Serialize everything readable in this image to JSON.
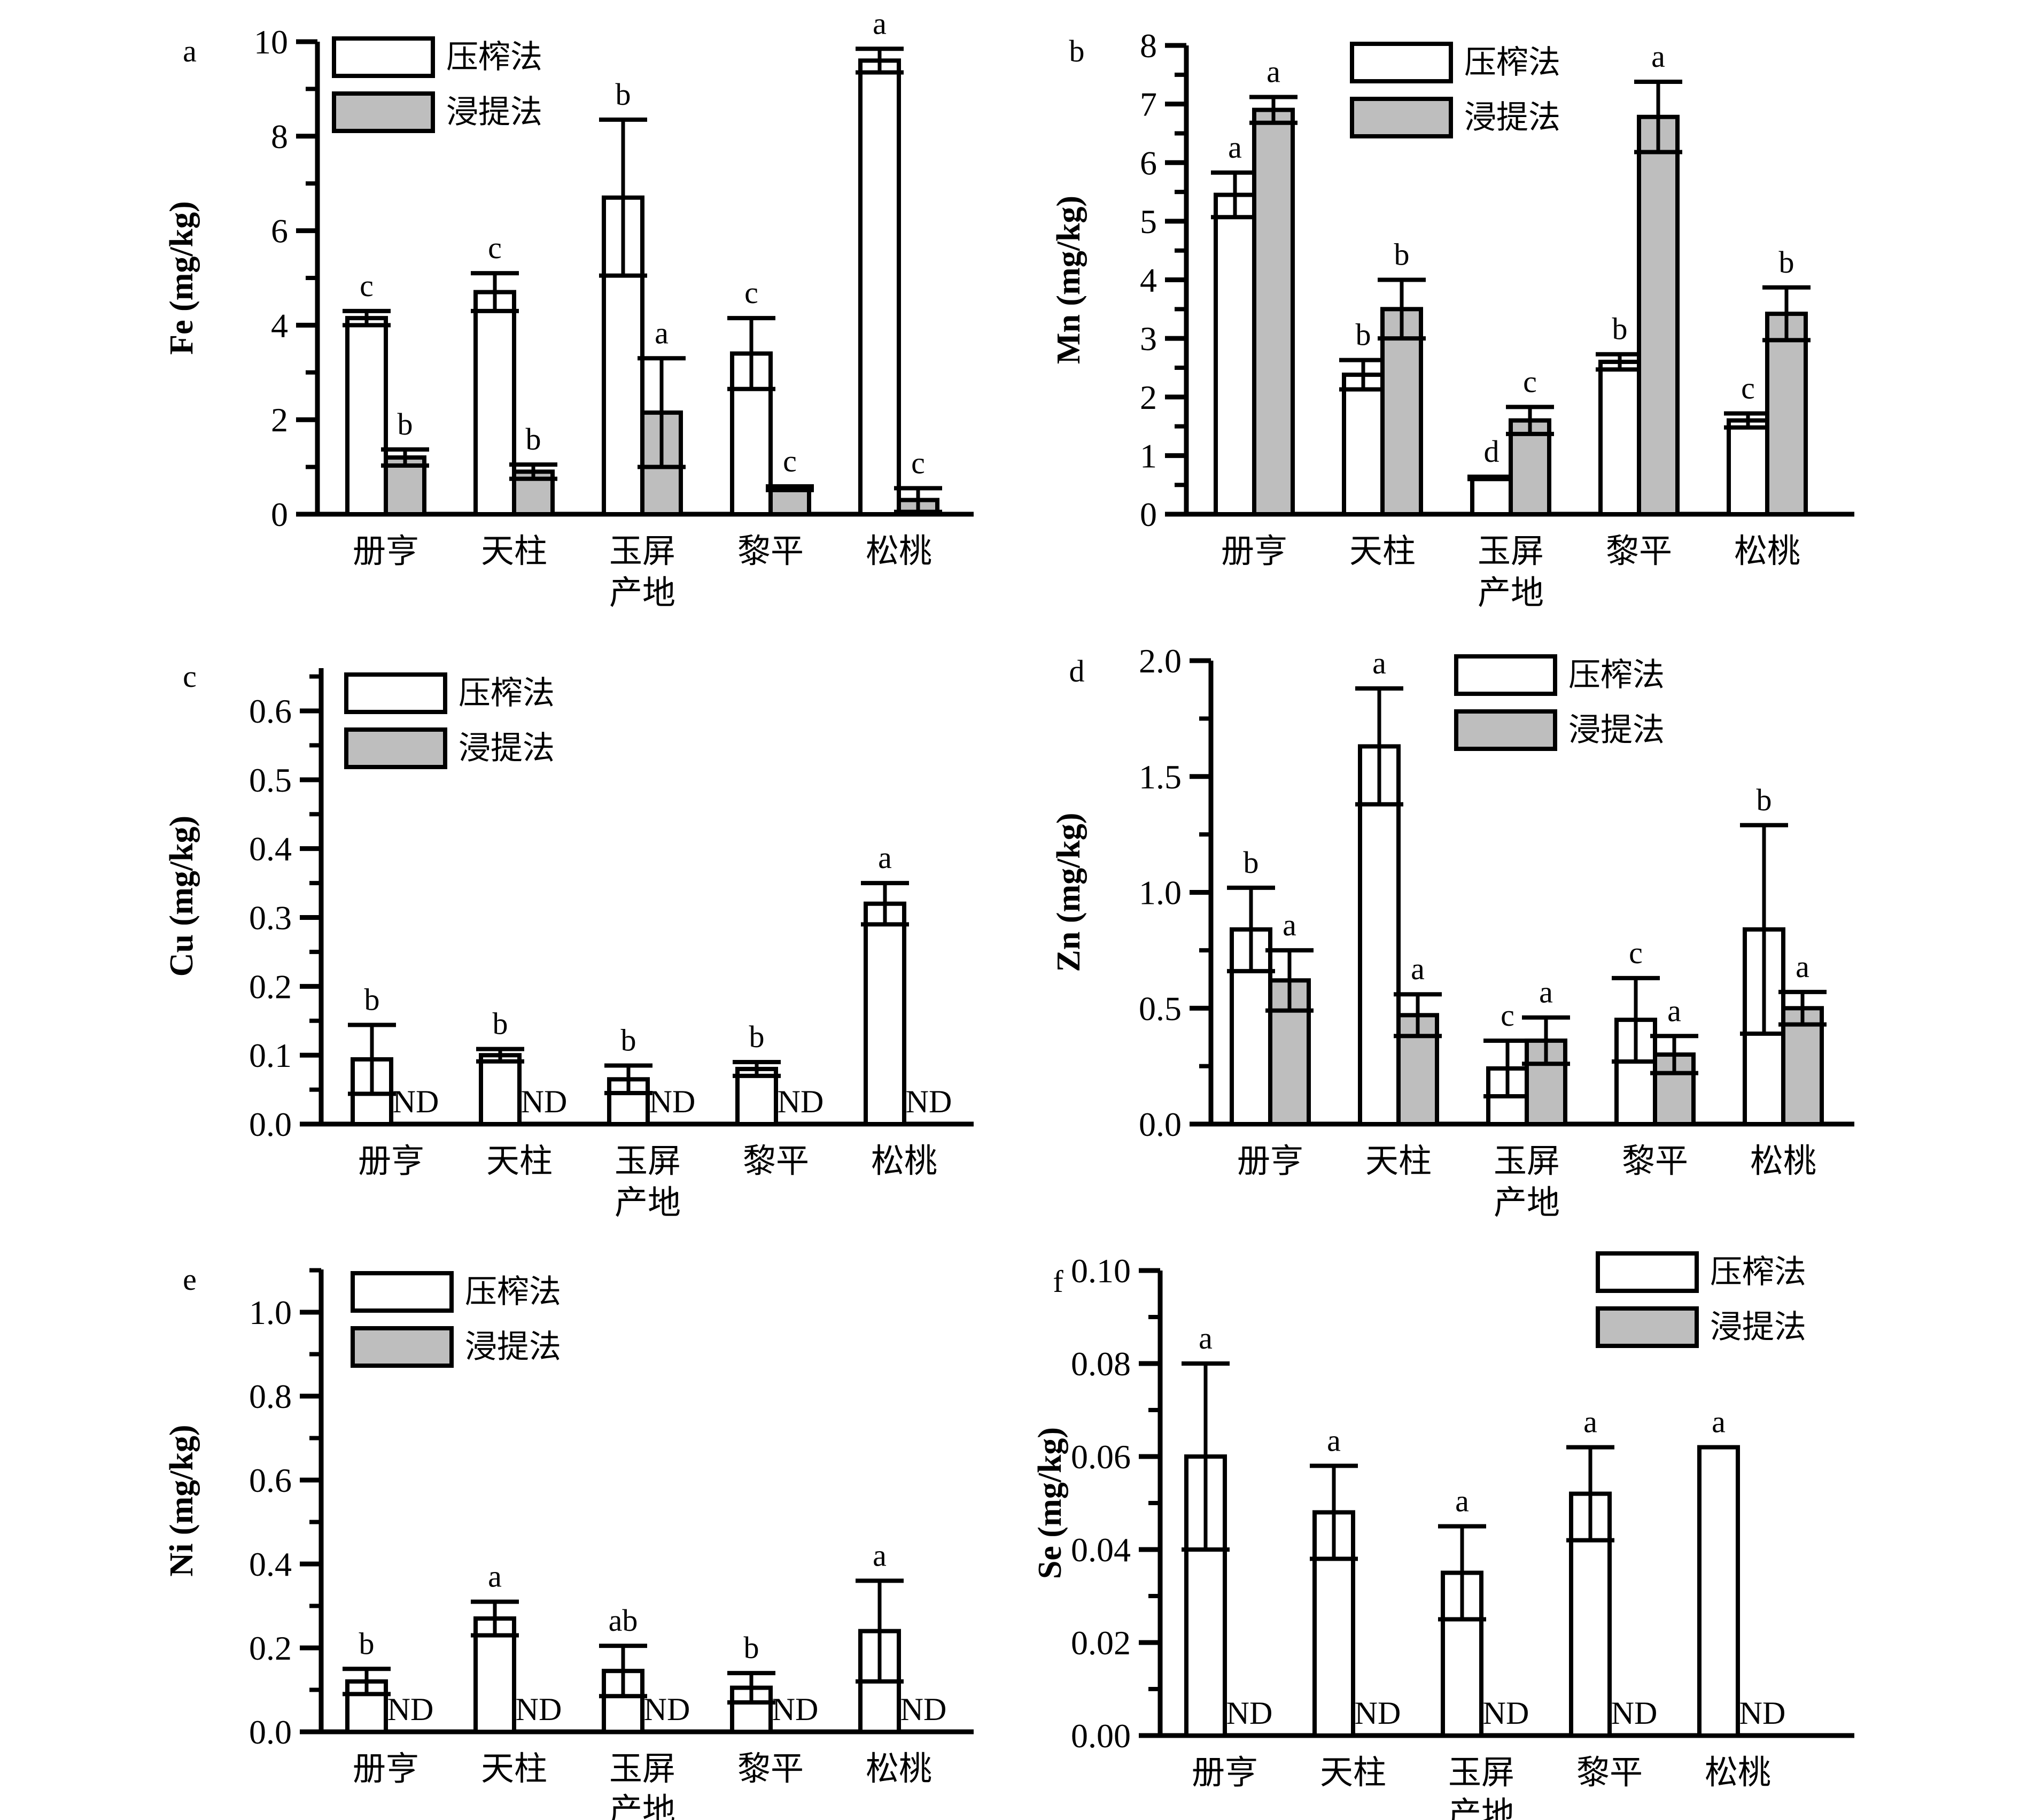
{
  "legend": {
    "pressed": "压榨法",
    "leached": "浸提法"
  },
  "colors": {
    "pressed_fill": "#ffffff",
    "leached_fill": "#bebebe",
    "stroke": "#000000"
  },
  "categories": [
    "册亨",
    "天柱",
    "玉屏\n产地",
    "黎平",
    "松桃"
  ],
  "nd_label": "ND",
  "chart_data": [
    {
      "type": "bar",
      "panel": "a",
      "ylabel": "Fe (mg/kg)",
      "ylim": [
        0,
        10
      ],
      "yticks": [
        0,
        2,
        4,
        6,
        8,
        10
      ],
      "ytick_labels": [
        "0",
        "2",
        "4",
        "6",
        "8",
        "10"
      ],
      "minor_step": 1,
      "legend_position": "top-left",
      "categories": [
        "册亨",
        "天柱",
        "玉屏产地",
        "黎平",
        "松桃"
      ],
      "series": [
        {
          "name": "压榨法",
          "values": [
            4.15,
            4.7,
            6.7,
            3.4,
            9.6
          ],
          "errors": [
            0.15,
            0.4,
            1.65,
            0.75,
            0.25
          ],
          "letters": [
            "c",
            "c",
            "b",
            "c",
            "a"
          ]
        },
        {
          "name": "浸提法",
          "values": [
            1.2,
            0.9,
            2.15,
            0.55,
            0.3
          ],
          "errors": [
            0.17,
            0.15,
            1.15,
            0.04,
            0.25
          ],
          "letters": [
            "b",
            "b",
            "a",
            "c",
            "c"
          ]
        }
      ]
    },
    {
      "type": "bar",
      "panel": "b",
      "ylabel": "Mn (mg/kg)",
      "ylim": [
        0,
        8
      ],
      "yticks": [
        0,
        1,
        2,
        3,
        4,
        5,
        6,
        7,
        8
      ],
      "ytick_labels": [
        "0",
        "1",
        "2",
        "3",
        "4",
        "5",
        "6",
        "7",
        "8"
      ],
      "minor_step": 0.5,
      "legend_position": "top-center",
      "categories": [
        "册亨",
        "天柱",
        "玉屏产地",
        "黎平",
        "松桃"
      ],
      "series": [
        {
          "name": "压榨法",
          "values": [
            5.45,
            2.38,
            0.62,
            2.6,
            1.6
          ],
          "errors": [
            0.38,
            0.25,
            0.02,
            0.13,
            0.12
          ],
          "letters": [
            "a",
            "b",
            "d",
            "b",
            "c"
          ]
        },
        {
          "name": "浸提法",
          "values": [
            6.9,
            3.5,
            1.6,
            6.78,
            3.42
          ],
          "errors": [
            0.22,
            0.5,
            0.23,
            0.6,
            0.45
          ],
          "letters": [
            "a",
            "b",
            "c",
            "a",
            "b"
          ]
        }
      ]
    },
    {
      "type": "bar",
      "panel": "c",
      "ylabel": "Cu (mg/kg)",
      "ylim": [
        0,
        0.65
      ],
      "yticks": [
        0,
        0.1,
        0.2,
        0.3,
        0.4,
        0.5,
        0.6
      ],
      "ytick_labels": [
        "0.0",
        "0.1",
        "0.2",
        "0.3",
        "0.4",
        "0.5",
        "0.6"
      ],
      "minor_step": 0.05,
      "legend_position": "top-left",
      "categories": [
        "册亨",
        "天柱",
        "玉屏产地",
        "黎平",
        "松桃"
      ],
      "series": [
        {
          "name": "压榨法",
          "values": [
            0.094,
            0.1,
            0.065,
            0.08,
            0.32
          ],
          "errors": [
            0.05,
            0.009,
            0.02,
            0.01,
            0.03
          ],
          "letters": [
            "b",
            "b",
            "b",
            "b",
            "a"
          ]
        },
        {
          "name": "浸提法",
          "values": [
            null,
            null,
            null,
            null,
            null
          ],
          "errors": [
            null,
            null,
            null,
            null,
            null
          ],
          "letters": [
            "ND",
            "ND",
            "ND",
            "ND",
            "ND"
          ]
        }
      ]
    },
    {
      "type": "bar",
      "panel": "d",
      "ylabel": "Zn (mg/kg)",
      "ylim": [
        0,
        2.0
      ],
      "yticks": [
        0,
        0.5,
        1.0,
        1.5,
        2.0
      ],
      "ytick_labels": [
        "0.0",
        "0.5",
        "1.0",
        "1.5",
        "2.0"
      ],
      "minor_step": 0.25,
      "legend_position": "top-right",
      "categories": [
        "册亨",
        "天柱",
        "玉屏产地",
        "黎平",
        "松桃"
      ],
      "series": [
        {
          "name": "压榨法",
          "values": [
            0.84,
            1.63,
            0.24,
            0.45,
            0.84
          ],
          "errors": [
            0.18,
            0.25,
            0.12,
            0.18,
            0.45
          ],
          "letters": [
            "b",
            "a",
            "c",
            "c",
            "b"
          ]
        },
        {
          "name": "浸提法",
          "values": [
            0.62,
            0.47,
            0.36,
            0.3,
            0.5
          ],
          "errors": [
            0.13,
            0.09,
            0.1,
            0.08,
            0.07
          ],
          "letters": [
            "a",
            "a",
            "a",
            "a",
            "a"
          ]
        }
      ]
    },
    {
      "type": "bar",
      "panel": "e",
      "ylabel": "Ni (mg/kg)",
      "ylim": [
        0,
        1.1
      ],
      "yticks": [
        0,
        0.2,
        0.4,
        0.6,
        0.8,
        1.0
      ],
      "ytick_labels": [
        "0.0",
        "0.2",
        "0.4",
        "0.6",
        "0.8",
        "1.0"
      ],
      "minor_step": 0.1,
      "legend_position": "top-left",
      "categories": [
        "册亨",
        "天柱",
        "玉屏产地",
        "黎平",
        "松桃"
      ],
      "series": [
        {
          "name": "压榨法",
          "values": [
            0.12,
            0.27,
            0.145,
            0.105,
            0.24
          ],
          "errors": [
            0.03,
            0.04,
            0.06,
            0.035,
            0.12
          ],
          "letters": [
            "b",
            "a",
            "ab",
            "b",
            "a"
          ]
        },
        {
          "name": "浸提法",
          "values": [
            null,
            null,
            null,
            null,
            null
          ],
          "errors": [
            null,
            null,
            null,
            null,
            null
          ],
          "letters": [
            "ND",
            "ND",
            "ND",
            "ND",
            "ND"
          ]
        }
      ]
    },
    {
      "type": "bar",
      "panel": "f",
      "ylabel": "Se (mg/kg)",
      "ylim": [
        0,
        0.1
      ],
      "yticks": [
        0,
        0.02,
        0.04,
        0.06,
        0.08,
        0.1
      ],
      "ytick_labels": [
        "0.00",
        "0.02",
        "0.04",
        "0.06",
        "0.08",
        "0.10"
      ],
      "minor_step": 0.01,
      "legend_position": "top-right",
      "categories": [
        "册亨",
        "天柱",
        "玉屏产地",
        "黎平",
        "松桃"
      ],
      "series": [
        {
          "name": "压榨法",
          "values": [
            0.06,
            0.048,
            0.035,
            0.052,
            0.062
          ],
          "errors": [
            0.02,
            0.01,
            0.01,
            0.01,
            0.0
          ],
          "letters": [
            "a",
            "a",
            "a",
            "a",
            "a"
          ]
        },
        {
          "name": "浸提法",
          "values": [
            null,
            null,
            null,
            null,
            null
          ],
          "errors": [
            null,
            null,
            null,
            null,
            null
          ],
          "letters": [
            "ND",
            "ND",
            "ND",
            "ND",
            "ND"
          ]
        }
      ]
    }
  ]
}
